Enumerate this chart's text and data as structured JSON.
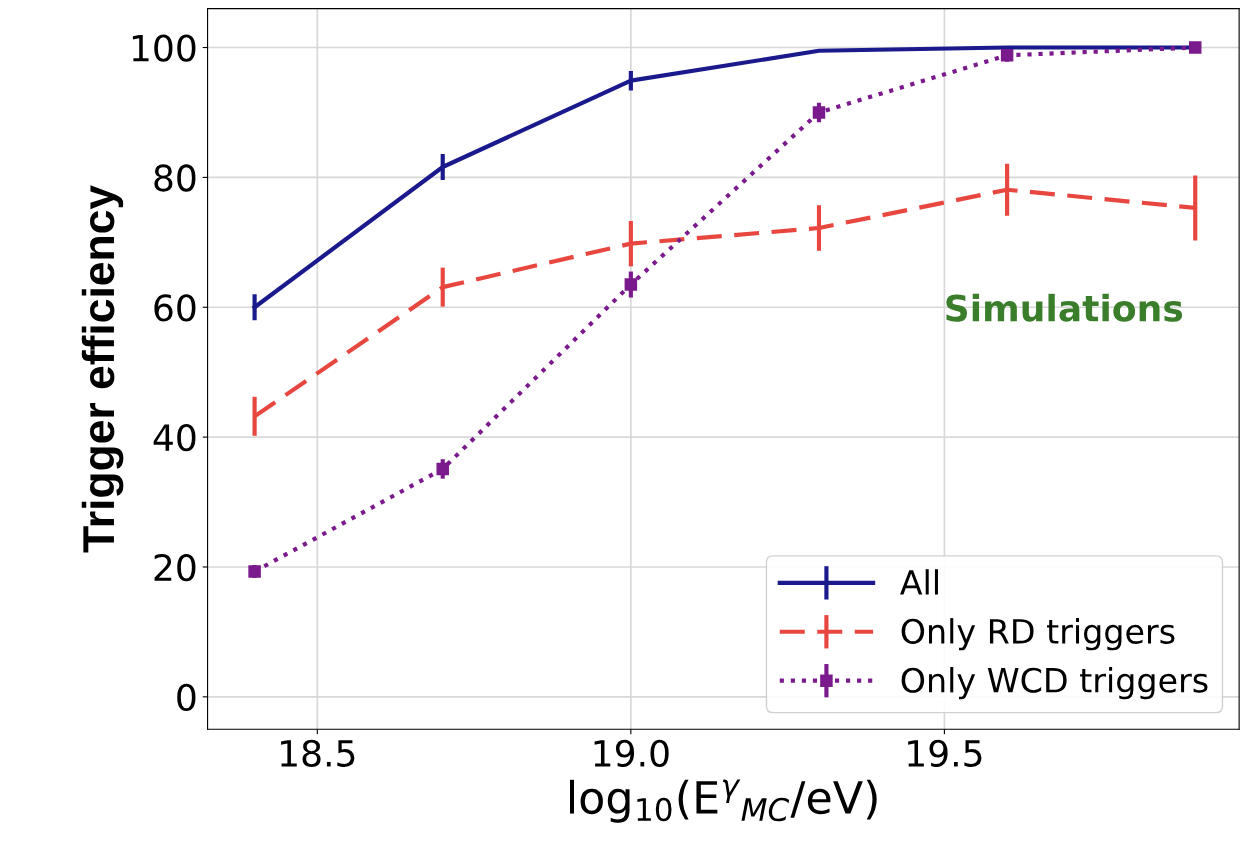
{
  "chart_data": {
    "type": "line",
    "xlabel": "log$_{10}$(E$^{γ}$$_{MC}$/eV)",
    "ylabel": "Trigger efficiency",
    "x": [
      18.4,
      18.7,
      19.0,
      19.3,
      19.6,
      19.9
    ],
    "series": [
      {
        "name": "All",
        "color": "#1a1a8c",
        "line_style": "solid",
        "values": [
          60,
          81.6,
          94.9,
          99.5,
          100,
          100
        ],
        "errors": [
          2,
          2,
          1.5,
          null,
          null,
          null
        ]
      },
      {
        "name": "Only RD triggers",
        "color": "#e8473f",
        "line_style": "dashed",
        "values": [
          43.2,
          63.1,
          69.8,
          72.2,
          78.1,
          75.3
        ],
        "errors": [
          3,
          3,
          3.5,
          3.5,
          4,
          5
        ]
      },
      {
        "name": "Only WCD triggers",
        "color": "#7b1a8c",
        "line_style": "dotted",
        "marker": "square",
        "values": [
          19.3,
          35.1,
          63.5,
          90,
          98.8,
          100
        ],
        "errors": [
          1,
          1.5,
          2,
          1.5,
          1,
          null
        ]
      }
    ],
    "annotations": [
      "Simulations"
    ],
    "xlim": [
      18.325,
      19.97
    ],
    "ylim": [
      -5,
      106
    ],
    "xticks": [
      {
        "value": 18.5,
        "label": "18.5"
      },
      {
        "value": 19.0,
        "label": "19.0"
      },
      {
        "value": 19.5,
        "label": "19.5"
      }
    ],
    "yticks": [
      0,
      20,
      40,
      60,
      80,
      100
    ],
    "grid": true,
    "legend": "bottom right"
  }
}
